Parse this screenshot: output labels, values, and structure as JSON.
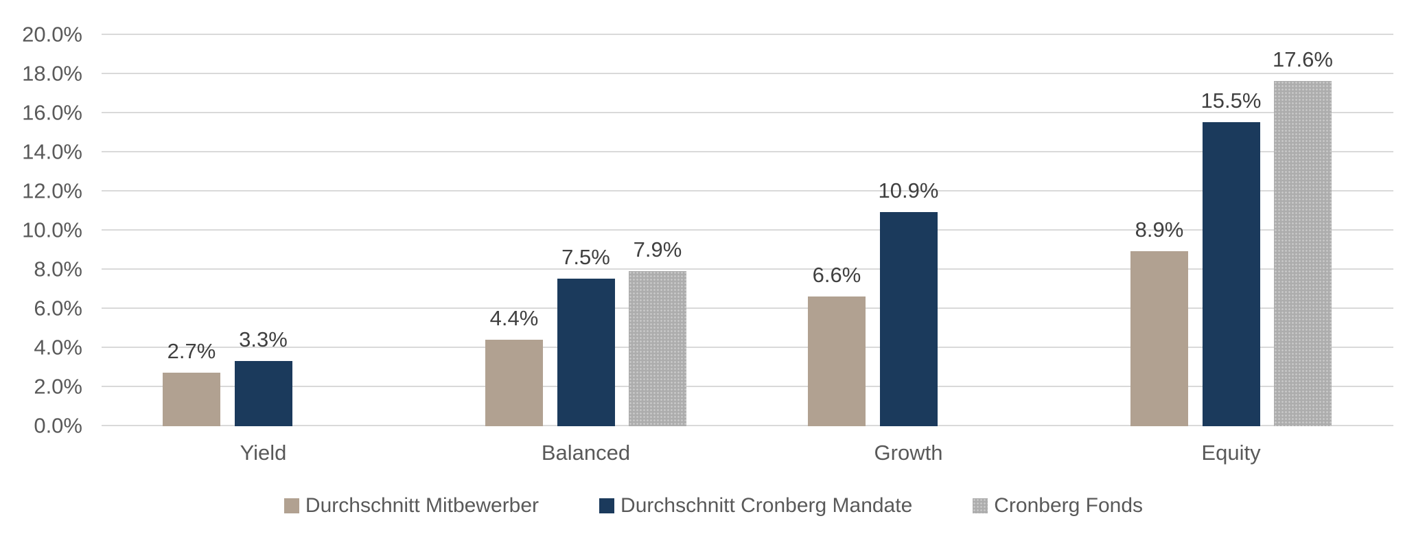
{
  "chart_data": {
    "type": "bar",
    "title": "",
    "xlabel": "",
    "ylabel": "",
    "categories": [
      "Yield",
      "Balanced",
      "Growth",
      "Equity"
    ],
    "series": [
      {
        "name": "Durchschnitt Mitbewerber",
        "color": "#b1a191",
        "pattern": "solid",
        "values": [
          2.7,
          4.4,
          6.6,
          8.9
        ],
        "labels": [
          "2.7%",
          "4.4%",
          "6.6%",
          "8.9%"
        ]
      },
      {
        "name": "Durchschnitt Cronberg Mandate",
        "color": "#1b3a5c",
        "pattern": "solid",
        "values": [
          3.3,
          7.5,
          10.9,
          15.5
        ],
        "labels": [
          "3.3%",
          "7.5%",
          "10.9%",
          "15.5%"
        ]
      },
      {
        "name": "Cronberg Fonds",
        "color": "#b3b3b3",
        "pattern": "dotted",
        "values": [
          null,
          7.9,
          null,
          17.6
        ],
        "labels": [
          null,
          "7.9%",
          null,
          "17.6%"
        ]
      }
    ],
    "y_axis": {
      "min": 0,
      "max": 20,
      "step": 2,
      "tick_labels": [
        "0.0%",
        "2.0%",
        "4.0%",
        "6.0%",
        "8.0%",
        "10.0%",
        "12.0%",
        "14.0%",
        "16.0%",
        "18.0%",
        "20.0%"
      ]
    },
    "grid": true,
    "legend_position": "bottom",
    "colors": {
      "grid": "#d9d9d9",
      "axis_text": "#595959",
      "data_label_text": "#404040",
      "background": "#ffffff"
    }
  }
}
